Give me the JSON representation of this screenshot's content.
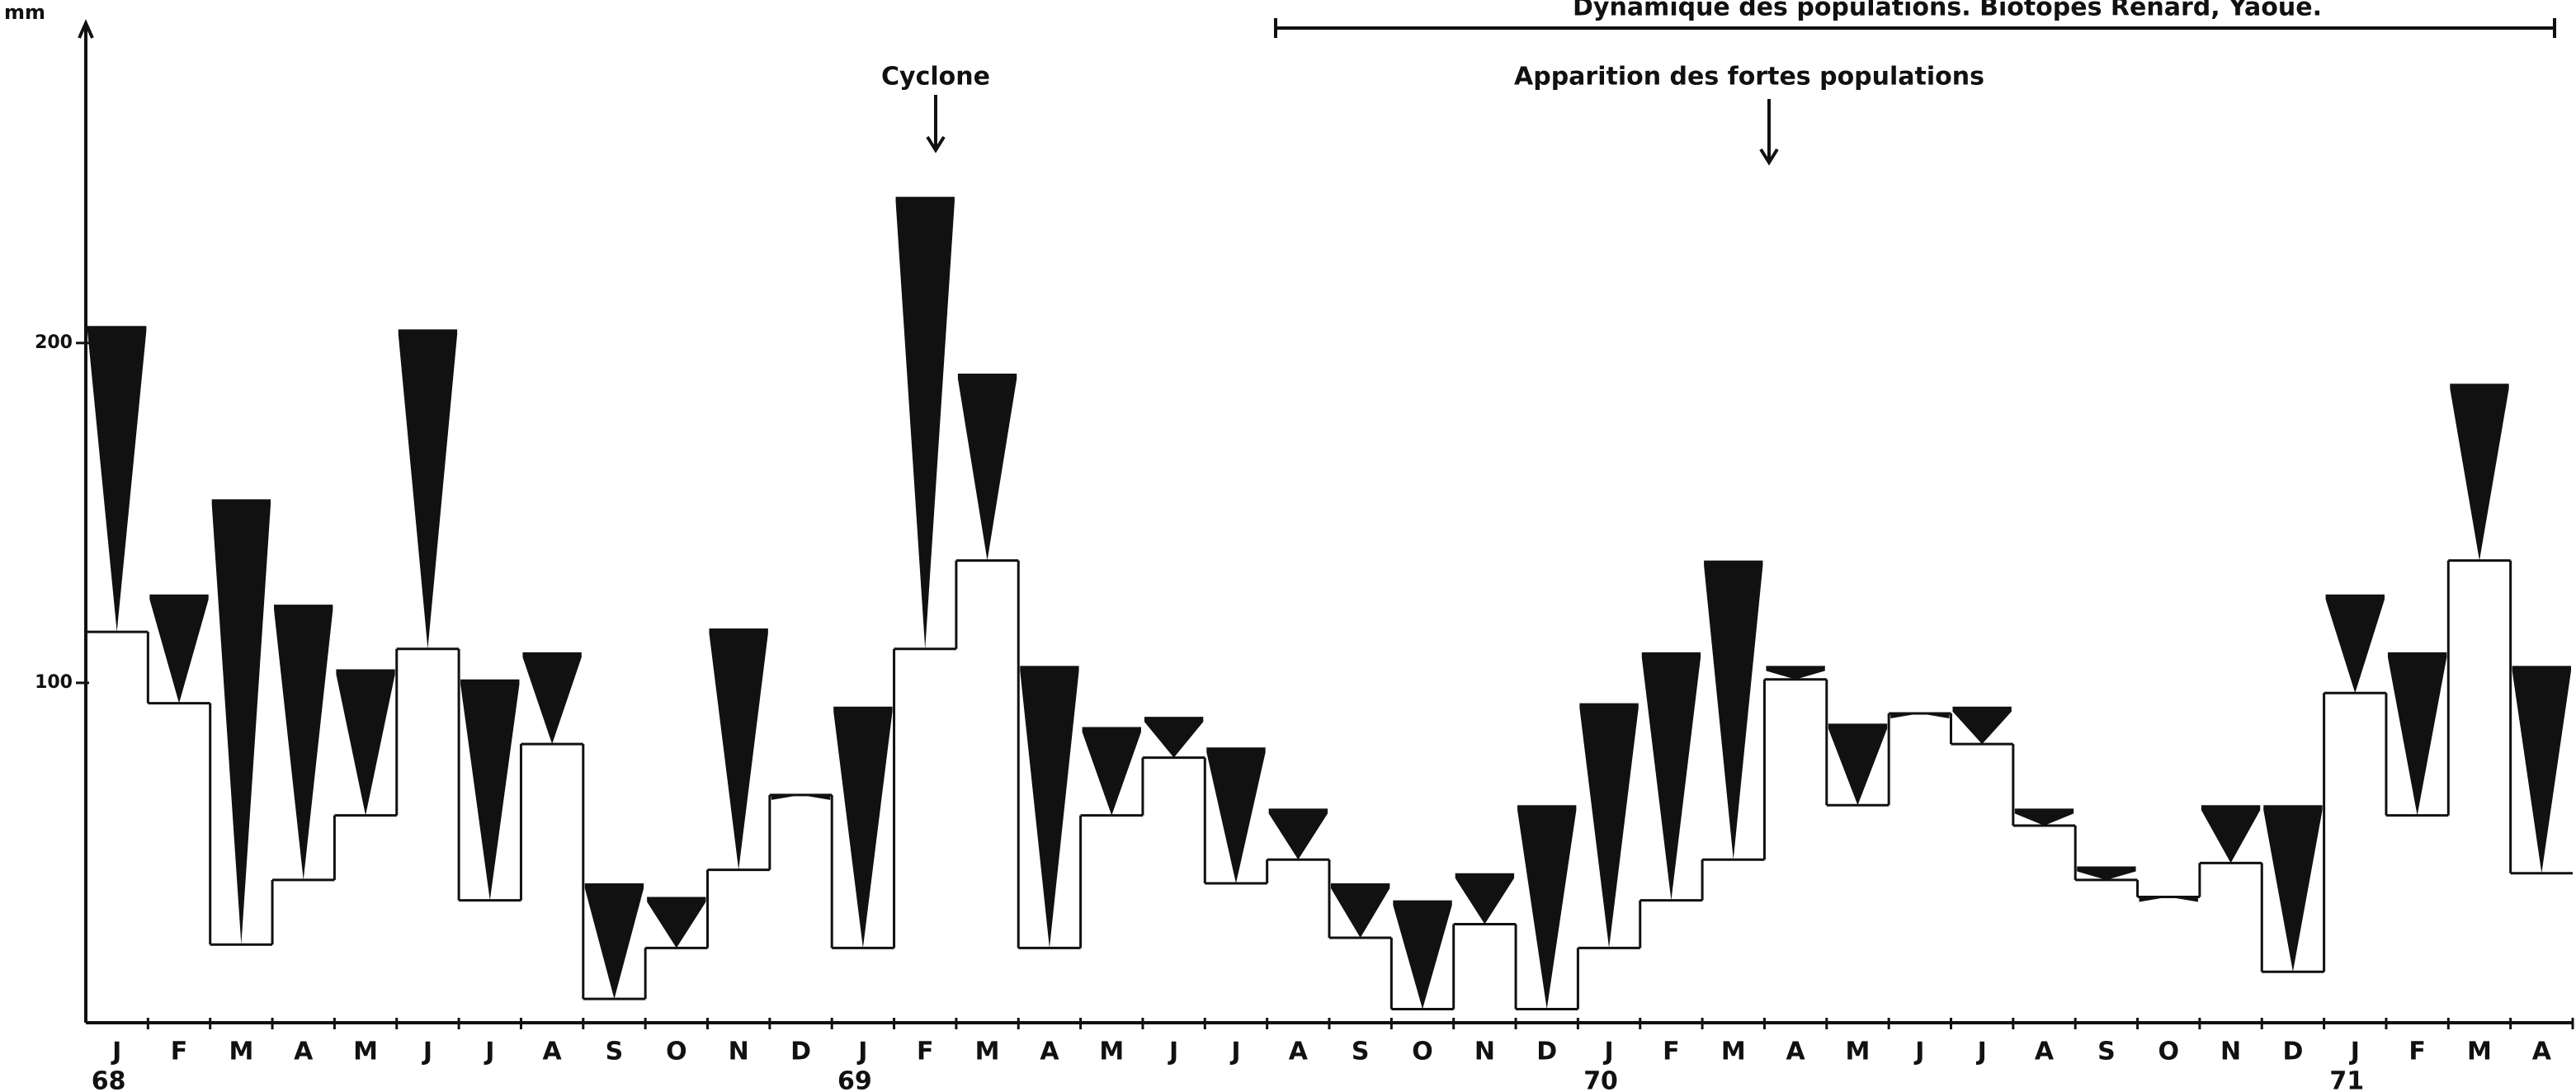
{
  "chart_data": {
    "type": "floating-triangle",
    "y_label": "mm",
    "header": "Dynamique des populations. Biotopes Renard, Yaoue.",
    "annotations": [
      "Cyclone",
      "Apparition des fortes populations"
    ],
    "categories": [
      "J",
      "F",
      "M",
      "A",
      "M",
      "J",
      "J",
      "A",
      "S",
      "O",
      "N",
      "D",
      "J",
      "F",
      "M",
      "A",
      "M",
      "J",
      "J",
      "A",
      "S",
      "O",
      "N",
      "D",
      "J",
      "F",
      "M",
      "A",
      "M",
      "J",
      "J",
      "A",
      "S",
      "O",
      "N",
      "D",
      "J",
      "F",
      "M",
      "A"
    ],
    "year_labels": [
      "68",
      null,
      null,
      null,
      null,
      null,
      null,
      null,
      null,
      null,
      null,
      null,
      "69",
      null,
      null,
      null,
      null,
      null,
      null,
      null,
      null,
      null,
      null,
      null,
      "70",
      null,
      null,
      null,
      null,
      null,
      null,
      null,
      null,
      null,
      null,
      null,
      "71",
      null,
      null,
      null
    ],
    "highs": [
      205,
      126,
      154,
      123,
      104,
      204,
      101,
      109,
      41,
      37,
      116,
      67,
      93,
      243,
      191,
      105,
      87,
      90,
      81,
      63,
      41,
      36,
      44,
      64,
      94,
      109,
      136,
      105,
      88,
      91,
      93,
      63,
      46,
      37,
      64,
      64,
      126,
      109,
      188,
      105
    ],
    "lows": [
      115,
      94,
      23,
      42,
      61,
      110,
      36,
      82,
      7,
      22,
      45,
      67,
      22,
      110,
      136,
      22,
      61,
      78,
      41,
      48,
      25,
      4,
      29,
      4,
      22,
      36,
      48,
      101,
      64,
      91,
      82,
      58,
      42,
      37,
      47,
      15,
      97,
      61,
      136,
      44
    ],
    "color": "#111111",
    "ylim": [
      0,
      290
    ],
    "yticks": [
      100,
      200
    ]
  }
}
